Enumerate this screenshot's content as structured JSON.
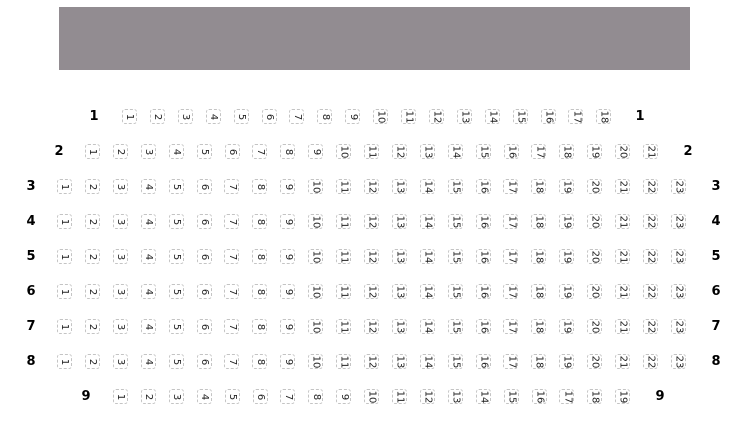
{
  "screen": {
    "color": "#928c91"
  },
  "rows": [
    {
      "label": "1",
      "seats": [
        1,
        2,
        3,
        4,
        5,
        6,
        7,
        8,
        9,
        10,
        11,
        12,
        13,
        14,
        15,
        16,
        17,
        18
      ]
    },
    {
      "label": "2",
      "seats": [
        1,
        2,
        3,
        4,
        5,
        6,
        7,
        8,
        9,
        10,
        11,
        12,
        13,
        14,
        15,
        16,
        17,
        18,
        19,
        20,
        21
      ]
    },
    {
      "label": "3",
      "seats": [
        1,
        2,
        3,
        4,
        5,
        6,
        7,
        8,
        9,
        10,
        11,
        12,
        13,
        14,
        15,
        16,
        17,
        18,
        19,
        20,
        21,
        22,
        23
      ]
    },
    {
      "label": "4",
      "seats": [
        1,
        2,
        3,
        4,
        5,
        6,
        7,
        8,
        9,
        10,
        11,
        12,
        13,
        14,
        15,
        16,
        17,
        18,
        19,
        20,
        21,
        22,
        23
      ]
    },
    {
      "label": "5",
      "seats": [
        1,
        2,
        3,
        4,
        5,
        6,
        7,
        8,
        9,
        10,
        11,
        12,
        13,
        14,
        15,
        16,
        17,
        18,
        19,
        20,
        21,
        22,
        23
      ]
    },
    {
      "label": "6",
      "seats": [
        1,
        2,
        3,
        4,
        5,
        6,
        7,
        8,
        9,
        10,
        11,
        12,
        13,
        14,
        15,
        16,
        17,
        18,
        19,
        20,
        21,
        22,
        23
      ]
    },
    {
      "label": "7",
      "seats": [
        1,
        2,
        3,
        4,
        5,
        6,
        7,
        8,
        9,
        10,
        11,
        12,
        13,
        14,
        15,
        16,
        17,
        18,
        19,
        20,
        21,
        22,
        23
      ]
    },
    {
      "label": "8",
      "seats": [
        1,
        2,
        3,
        4,
        5,
        6,
        7,
        8,
        9,
        10,
        11,
        12,
        13,
        14,
        15,
        16,
        17,
        18,
        19,
        20,
        21,
        22,
        23
      ]
    },
    {
      "label": "9",
      "seats": [
        1,
        2,
        3,
        4,
        5,
        6,
        7,
        8,
        9,
        10,
        11,
        12,
        13,
        14,
        15,
        16,
        17,
        18,
        19
      ]
    }
  ]
}
